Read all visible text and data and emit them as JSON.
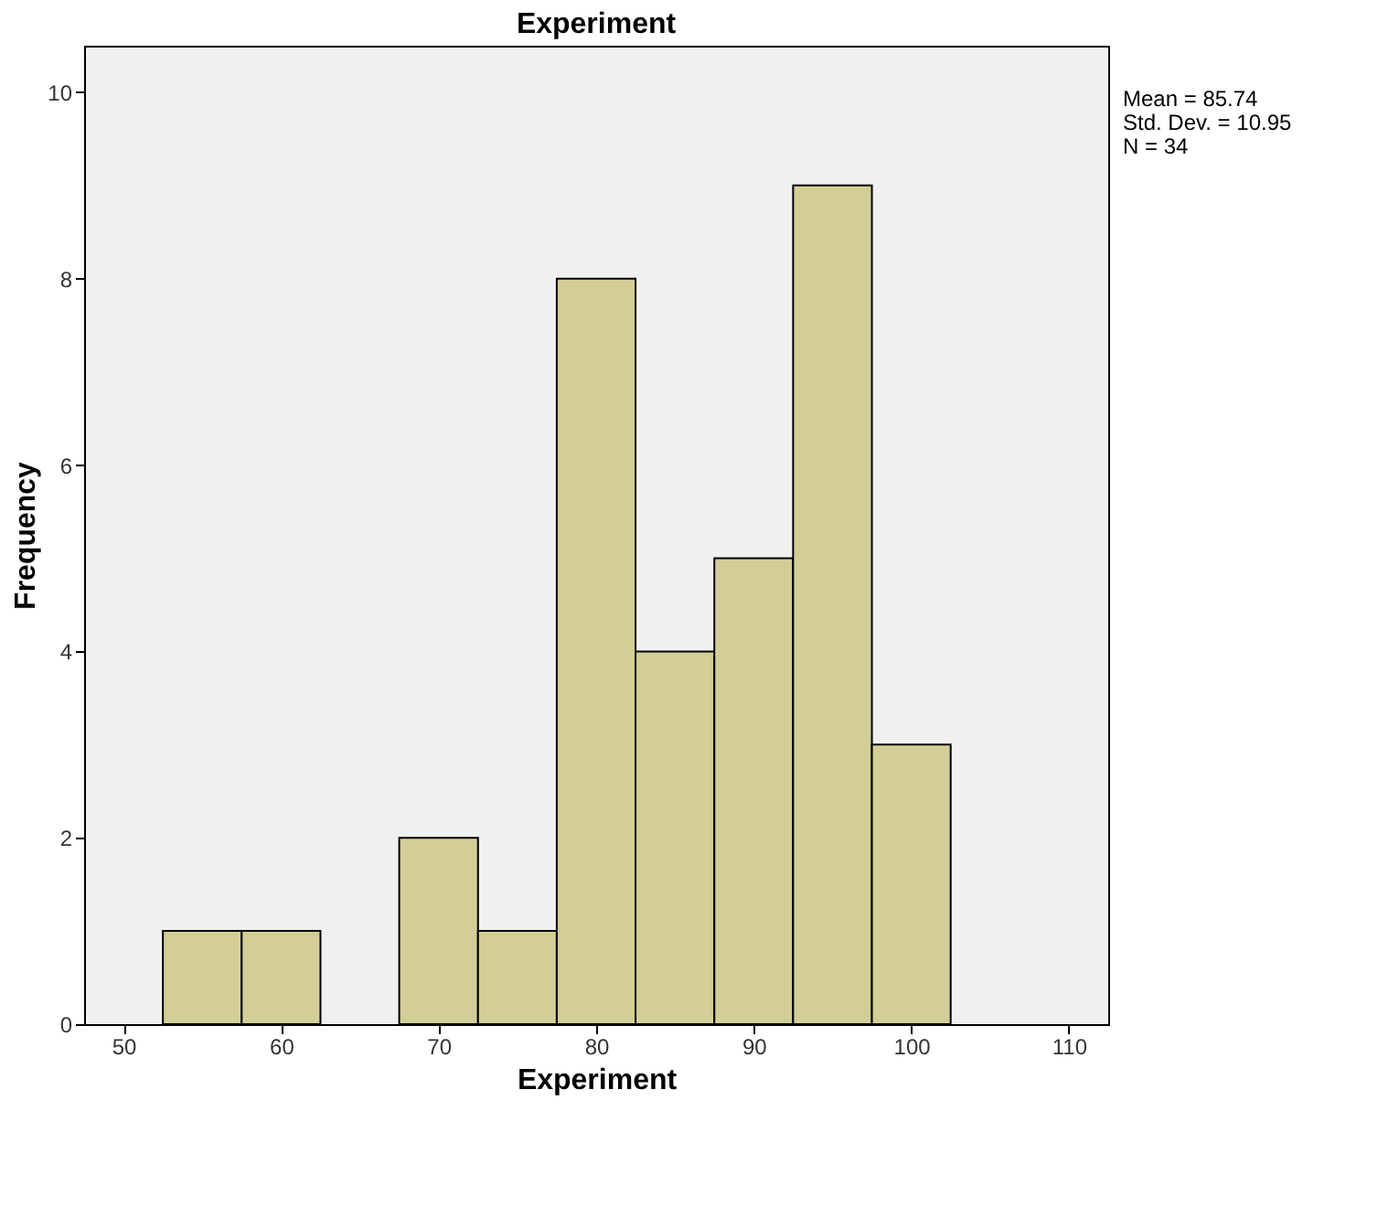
{
  "chart_data": {
    "type": "histogram",
    "title": "Experiment",
    "xlabel": "Experiment",
    "ylabel": "Frequency",
    "bins": [
      52.5,
      57.5,
      62.5,
      67.5,
      72.5,
      77.5,
      82.5,
      87.5,
      92.5,
      97.5,
      102.5
    ],
    "values": [
      1,
      1,
      0,
      2,
      1,
      8,
      4,
      5,
      9,
      3
    ],
    "color": "#d3ce97",
    "xlim": [
      47.5,
      112.5
    ],
    "xticks": [
      50,
      60,
      70,
      80,
      90,
      100,
      110
    ],
    "ylim": [
      0,
      10.5
    ],
    "yticks": [
      0,
      2,
      4,
      6,
      8,
      10
    ],
    "grid": false,
    "annotations": [
      "Mean = 85.74",
      "Std. Dev. = 10.95",
      "N = 34"
    ]
  }
}
